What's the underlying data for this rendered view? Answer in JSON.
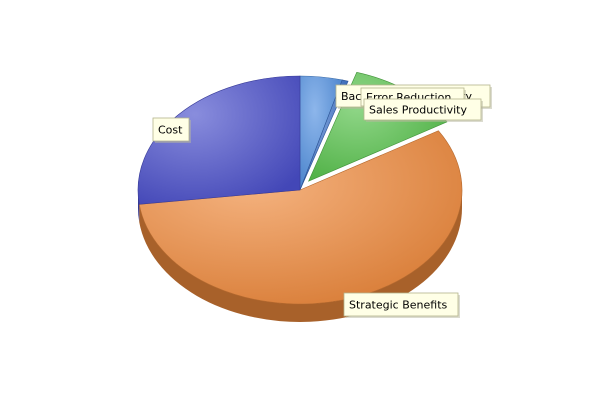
{
  "chart_data": {
    "type": "pie",
    "title": "",
    "style": "3d",
    "series": [
      {
        "name": "",
        "slices": [
          {
            "label": "Back Office Productivity",
            "value": 4.2,
            "color": "#4F8FE0",
            "exploded": false
          },
          {
            "label": "Error Reduction",
            "value": 0.6,
            "color": "#3A70C8",
            "exploded": false
          },
          {
            "label": "Sales Productivity",
            "value": 11.5,
            "color": "#55C24A",
            "exploded": true
          },
          {
            "label": "Strategic Benefits",
            "value": 56.7,
            "color": "#F08A3C",
            "exploded": false
          },
          {
            "label": "Cost",
            "value": 27.0,
            "color": "#4A4FCB",
            "exploded": false
          }
        ]
      }
    ],
    "legend": "none",
    "labels": "callout boxes"
  }
}
